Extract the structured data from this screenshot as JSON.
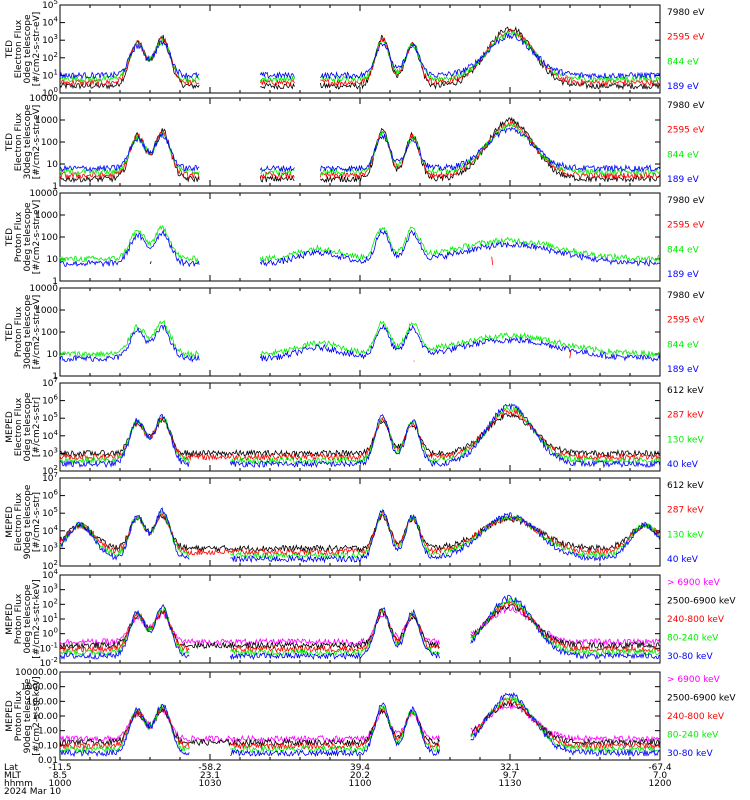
{
  "title": "",
  "date_label": "2024 Mar 10",
  "footer_axis": {
    "row_labels": [
      "Lat",
      "MLT",
      "hhmm"
    ],
    "columns": [
      {
        "values": [
          "-11.5",
          "8.5",
          "1000"
        ]
      },
      {
        "values": [
          "-58.2",
          "23.1",
          "1030"
        ]
      },
      {
        "values": [
          "39.4",
          "20.2",
          "1100"
        ]
      },
      {
        "values": [
          "32.1",
          "9.7",
          "1130"
        ]
      },
      {
        "values": [
          "-67.4",
          "7.0",
          "1200"
        ]
      }
    ]
  },
  "colors": {
    "black": "#000000",
    "red": "#ff0000",
    "green": "#00ee00",
    "blue": "#0000ff",
    "magenta": "#ff00ff"
  },
  "chart_data": [
    {
      "type": "line",
      "ylabel": [
        "TED",
        "Electron Flux",
        "0deg telescope",
        "[#/cm2-s-str-eV]"
      ],
      "yscale": "log",
      "ylim": [
        1,
        100000
      ],
      "ticks": [
        {
          "label": "10^0",
          "value": 1
        },
        {
          "label": "10^1",
          "value": 10
        },
        {
          "label": "10^2",
          "value": 100
        },
        {
          "label": "10^3",
          "value": 1000
        },
        {
          "label": "10^4",
          "value": 10000
        },
        {
          "label": "10^5",
          "value": 100000
        }
      ],
      "series": [
        {
          "name": "7980 eV",
          "color": "black"
        },
        {
          "name": "2595 eV",
          "color": "red"
        },
        {
          "name": "844 eV",
          "color": "green"
        },
        {
          "name": "189 eV",
          "color": "blue"
        }
      ]
    },
    {
      "type": "line",
      "ylabel": [
        "TED",
        "Electron Flux",
        "30deg telescope",
        "[#/cm2-s-str-eV]"
      ],
      "yscale": "log",
      "ylim": [
        1,
        10000
      ],
      "ticks": [
        {
          "label": "1",
          "value": 1
        },
        {
          "label": "10",
          "value": 10
        },
        {
          "label": "100",
          "value": 100
        },
        {
          "label": "1000",
          "value": 1000
        },
        {
          "label": "10000",
          "value": 10000
        }
      ],
      "series": [
        {
          "name": "7980 eV",
          "color": "black"
        },
        {
          "name": "2595 eV",
          "color": "red"
        },
        {
          "name": "844 eV",
          "color": "green"
        },
        {
          "name": "189 eV",
          "color": "blue"
        }
      ]
    },
    {
      "type": "line",
      "ylabel": [
        "TED",
        "Proton Flux",
        "0deg telescope",
        "[#/cm2-s-str-eV]"
      ],
      "yscale": "log",
      "ylim": [
        1,
        10000
      ],
      "ticks": [
        {
          "label": "1",
          "value": 1
        },
        {
          "label": "10",
          "value": 10
        },
        {
          "label": "100",
          "value": 100
        },
        {
          "label": "1000",
          "value": 1000
        },
        {
          "label": "10000",
          "value": 10000
        }
      ],
      "series": [
        {
          "name": "7980 eV",
          "color": "black"
        },
        {
          "name": "2595 eV",
          "color": "red"
        },
        {
          "name": "844 eV",
          "color": "green"
        },
        {
          "name": "189 eV",
          "color": "blue"
        }
      ]
    },
    {
      "type": "line",
      "ylabel": [
        "TED",
        "Proton Flux",
        "30deg telescope",
        "[#/cm2-s-str-eV]"
      ],
      "yscale": "log",
      "ylim": [
        1,
        10000
      ],
      "ticks": [
        {
          "label": "1",
          "value": 1
        },
        {
          "label": "10",
          "value": 10
        },
        {
          "label": "100",
          "value": 100
        },
        {
          "label": "1000",
          "value": 1000
        },
        {
          "label": "10000",
          "value": 10000
        }
      ],
      "series": [
        {
          "name": "7980 eV",
          "color": "black"
        },
        {
          "name": "2595 eV",
          "color": "red"
        },
        {
          "name": "844 eV",
          "color": "green"
        },
        {
          "name": "189 eV",
          "color": "blue"
        }
      ]
    },
    {
      "type": "line",
      "ylabel": [
        "MEPED",
        "Electron Flux",
        "0deg telescope",
        "[#/cm2-s-str]"
      ],
      "yscale": "log",
      "ylim": [
        100,
        10000000
      ],
      "ticks": [
        {
          "label": "10^2",
          "value": 100
        },
        {
          "label": "10^3",
          "value": 1000
        },
        {
          "label": "10^4",
          "value": 10000
        },
        {
          "label": "10^5",
          "value": 100000
        },
        {
          "label": "10^6",
          "value": 1000000
        },
        {
          "label": "10^7",
          "value": 10000000
        }
      ],
      "series": [
        {
          "name": "612 keV",
          "color": "black"
        },
        {
          "name": "287 keV",
          "color": "red"
        },
        {
          "name": "130 keV",
          "color": "green"
        },
        {
          "name": "40 keV",
          "color": "blue"
        }
      ]
    },
    {
      "type": "line",
      "ylabel": [
        "MEPED",
        "Electron Flux",
        "90deg telescope",
        "[#/cm2-s-str]"
      ],
      "yscale": "log",
      "ylim": [
        100,
        10000000
      ],
      "ticks": [
        {
          "label": "10^2",
          "value": 100
        },
        {
          "label": "10^3",
          "value": 1000
        },
        {
          "label": "10^4",
          "value": 10000
        },
        {
          "label": "10^5",
          "value": 100000
        },
        {
          "label": "10^6",
          "value": 1000000
        },
        {
          "label": "10^7",
          "value": 10000000
        }
      ],
      "series": [
        {
          "name": "612 keV",
          "color": "black"
        },
        {
          "name": "287 keV",
          "color": "red"
        },
        {
          "name": "130 keV",
          "color": "green"
        },
        {
          "name": "40 keV",
          "color": "blue"
        }
      ]
    },
    {
      "type": "line",
      "ylabel": [
        "MEPED",
        "Proton Flux",
        "0deg telescope",
        "[#/cm2-s-str-keV]"
      ],
      "yscale": "log",
      "ylim": [
        0.01,
        10000
      ],
      "ticks": [
        {
          "label": "10^-2",
          "value": 0.01
        },
        {
          "label": "10^-1",
          "value": 0.1
        },
        {
          "label": "10^0",
          "value": 1
        },
        {
          "label": "10^1",
          "value": 10
        },
        {
          "label": "10^2",
          "value": 100
        },
        {
          "label": "10^3",
          "value": 1000
        },
        {
          "label": "10^4",
          "value": 10000
        }
      ],
      "series": [
        {
          "name": "> 6900 keV",
          "color": "magenta"
        },
        {
          "name": "2500-6900 keV",
          "color": "black"
        },
        {
          "name": "240-800 keV",
          "color": "red"
        },
        {
          "name": "80-240 keV",
          "color": "green"
        },
        {
          "name": "30-80 keV",
          "color": "blue"
        }
      ]
    },
    {
      "type": "line",
      "ylabel": [
        "MEPED",
        "Proton Flux",
        "90deg telescope",
        "[#/cm2-s-str-keV]"
      ],
      "yscale": "log",
      "ylim": [
        0.01,
        10000
      ],
      "ticks": [
        {
          "label": "0.01",
          "value": 0.01
        },
        {
          "label": "0.10",
          "value": 0.1
        },
        {
          "label": "1.00",
          "value": 1
        },
        {
          "label": "10.00",
          "value": 10
        },
        {
          "label": "100.00",
          "value": 100
        },
        {
          "label": "1000.00",
          "value": 1000
        },
        {
          "label": "10000.00",
          "value": 10000
        }
      ],
      "series": [
        {
          "name": "> 6900 keV",
          "color": "magenta"
        },
        {
          "name": "2500-6900 keV",
          "color": "black"
        },
        {
          "name": "240-800 keV",
          "color": "red"
        },
        {
          "name": "80-240 keV",
          "color": "green"
        },
        {
          "name": "30-80 keV",
          "color": "blue"
        }
      ]
    }
  ]
}
